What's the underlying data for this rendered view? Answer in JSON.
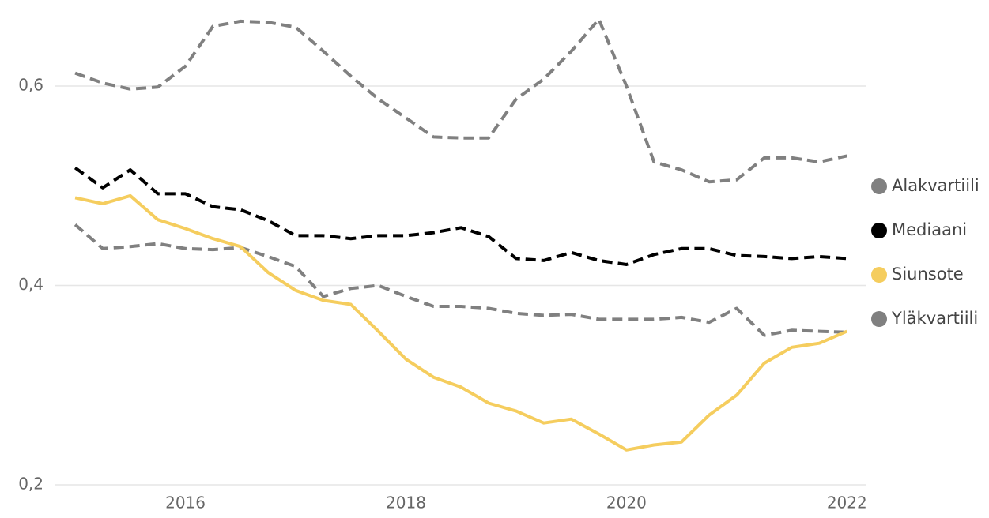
{
  "chart_data": {
    "type": "line",
    "x": [
      2015,
      2015.25,
      2015.5,
      2015.75,
      2016,
      2016.25,
      2016.5,
      2016.75,
      2017,
      2017.25,
      2017.5,
      2017.75,
      2018,
      2018.25,
      2018.5,
      2018.75,
      2019,
      2019.25,
      2019.5,
      2019.75,
      2020,
      2020.25,
      2020.5,
      2020.75,
      2021,
      2021.25,
      2021.5,
      2021.75,
      2022
    ],
    "series": [
      {
        "name": "Alakvartiili",
        "color": "#808080",
        "dashed": true,
        "values": [
          0.461,
          0.437,
          0.439,
          0.442,
          0.437,
          0.436,
          0.438,
          0.429,
          0.419,
          0.389,
          0.397,
          0.4,
          0.389,
          0.379,
          0.379,
          0.377,
          0.372,
          0.37,
          0.371,
          0.366,
          0.366,
          0.366,
          0.368,
          0.363,
          0.377,
          0.35,
          0.355,
          0.354,
          0.353
        ]
      },
      {
        "name": "Mediaani",
        "color": "#000000",
        "dashed": true,
        "values": [
          0.518,
          0.498,
          0.516,
          0.492,
          0.492,
          0.479,
          0.476,
          0.465,
          0.45,
          0.45,
          0.447,
          0.45,
          0.45,
          0.453,
          0.458,
          0.449,
          0.427,
          0.425,
          0.433,
          0.425,
          0.421,
          0.431,
          0.437,
          0.437,
          0.43,
          0.429,
          0.427,
          0.429,
          0.427
        ]
      },
      {
        "name": "Siunsote",
        "color": "#f5cd5e",
        "dashed": false,
        "values": [
          0.488,
          0.482,
          0.49,
          0.466,
          0.457,
          0.447,
          0.439,
          0.413,
          0.395,
          0.385,
          0.381,
          0.354,
          0.326,
          0.308,
          0.298,
          0.282,
          0.274,
          0.262,
          0.266,
          0.251,
          0.235,
          0.24,
          0.243,
          0.27,
          0.29,
          0.322,
          0.338,
          0.342,
          0.354
        ]
      },
      {
        "name": "Yläkvartiili",
        "color": "#808080",
        "dashed": true,
        "values": [
          0.613,
          0.603,
          0.597,
          0.599,
          0.62,
          0.66,
          0.665,
          0.664,
          0.659,
          0.635,
          0.61,
          0.587,
          0.568,
          0.549,
          0.548,
          0.548,
          0.587,
          0.607,
          0.635,
          0.667,
          0.6,
          0.524,
          0.516,
          0.504,
          0.506,
          0.528,
          0.528,
          0.524,
          0.53
        ]
      }
    ],
    "xlim": [
      2014.82,
      2022.17
    ],
    "xticks": [
      2016,
      2018,
      2020,
      2022
    ],
    "ylim": [
      0.2,
      0.68
    ],
    "yticks": [
      {
        "value": 0.2,
        "label": "0,2"
      },
      {
        "value": 0.4,
        "label": "0,4"
      },
      {
        "value": 0.6,
        "label": "0,6"
      }
    ],
    "grid": true,
    "legend": "right"
  }
}
